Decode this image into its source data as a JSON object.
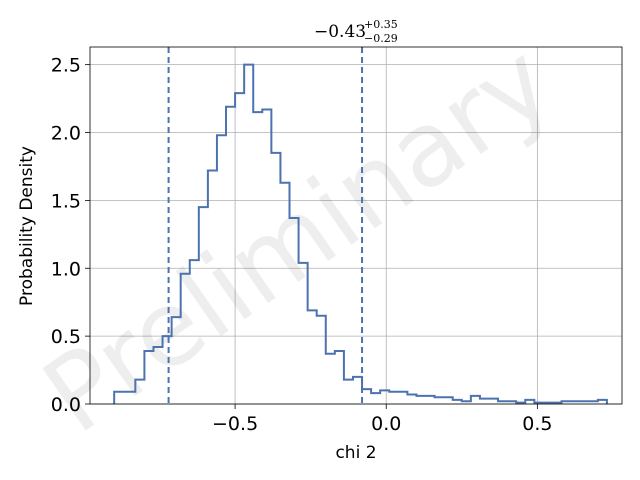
{
  "chart_data": {
    "type": "histogram",
    "title": "-0.43",
    "title_upper": "+0.35",
    "title_lower": "-0.29",
    "xlabel": "chi 2",
    "ylabel": "Probability Density",
    "xlim": [
      -0.98,
      0.78
    ],
    "ylim": [
      0.0,
      2.63
    ],
    "xticks": [
      -0.5,
      0.0,
      0.5
    ],
    "xtick_labels": [
      "−0.5",
      "0.0",
      "0.5"
    ],
    "yticks": [
      0.0,
      0.5,
      1.0,
      1.5,
      2.0,
      2.5
    ],
    "ytick_labels": [
      "0.0",
      "0.5",
      "1.0",
      "1.5",
      "2.0",
      "2.5"
    ],
    "grid": true,
    "watermark": "Preliminary",
    "line_color": "#4c72b0",
    "vlines": [
      -0.72,
      -0.08
    ],
    "bins": [
      -0.9,
      -0.83,
      -0.8,
      -0.77,
      -0.74,
      -0.71,
      -0.68,
      -0.65,
      -0.62,
      -0.59,
      -0.56,
      -0.53,
      -0.5,
      -0.47,
      -0.44,
      -0.41,
      -0.38,
      -0.35,
      -0.32,
      -0.29,
      -0.26,
      -0.23,
      -0.2,
      -0.17,
      -0.14,
      -0.11,
      -0.08,
      -0.05,
      -0.02,
      0.01,
      0.04,
      0.07,
      0.1,
      0.13,
      0.16,
      0.19,
      0.22,
      0.25,
      0.28,
      0.31,
      0.34,
      0.37,
      0.4,
      0.43,
      0.46,
      0.49,
      0.52,
      0.55,
      0.58,
      0.61,
      0.64,
      0.67,
      0.7,
      0.73
    ],
    "values": [
      0.09,
      0.18,
      0.39,
      0.42,
      0.5,
      0.64,
      0.96,
      1.06,
      1.45,
      1.72,
      1.98,
      2.19,
      2.29,
      2.5,
      2.15,
      2.17,
      1.85,
      1.63,
      1.37,
      1.04,
      0.69,
      0.65,
      0.37,
      0.39,
      0.18,
      0.2,
      0.11,
      0.08,
      0.1,
      0.09,
      0.09,
      0.07,
      0.06,
      0.06,
      0.05,
      0.05,
      0.03,
      0.02,
      0.06,
      0.04,
      0.04,
      0.02,
      0.02,
      0.01,
      0.03,
      0.01,
      0.01,
      0.01,
      0.02,
      0.02,
      0.02,
      0.02,
      0.03
    ]
  }
}
